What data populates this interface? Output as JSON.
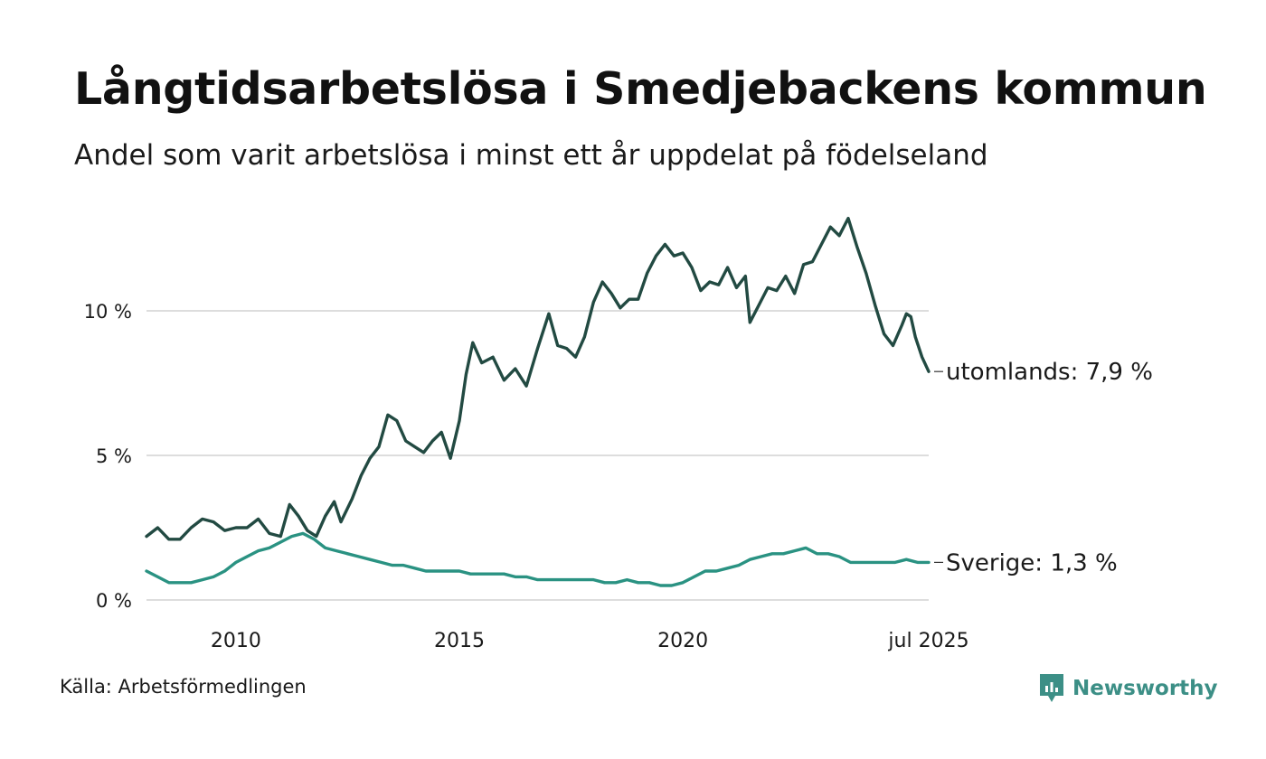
{
  "header": {
    "title": "Långtidsarbetslösa i Smedjebackens kommun",
    "subtitle": "Andel som varit arbetslösa i minst ett år uppdelat på födelseland"
  },
  "footer": {
    "source": "Källa: Arbetsförmedlingen",
    "brand": "Newsworthy"
  },
  "colors": {
    "utomlands": "#224a42",
    "sverige": "#2a9282",
    "grid": "#dddddd",
    "brand": "#3c8f86"
  },
  "chart_data": {
    "type": "line",
    "title": "Långtidsarbetslösa i Smedjebackens kommun",
    "subtitle": "Andel som varit arbetslösa i minst ett år uppdelat på födelseland",
    "xlabel": "",
    "ylabel": "",
    "xlim": [
      2008.0,
      2025.5
    ],
    "ylim": [
      0,
      14
    ],
    "grid": true,
    "legend": "end-of-line labels",
    "y_ticks": [
      {
        "value": 0,
        "label": "0 %"
      },
      {
        "value": 5,
        "label": "5 %"
      },
      {
        "value": 10,
        "label": "10 %"
      }
    ],
    "x_ticks": [
      {
        "value": 2010.0,
        "label": "2010"
      },
      {
        "value": 2015.0,
        "label": "2015"
      },
      {
        "value": 2020.0,
        "label": "2020"
      },
      {
        "value": 2025.5,
        "label": "jul 2025"
      }
    ],
    "series": [
      {
        "name": "utomlands",
        "end_label": "utomlands: 7,9 %",
        "points": [
          [
            2008.0,
            2.2
          ],
          [
            2008.25,
            2.5
          ],
          [
            2008.5,
            2.1
          ],
          [
            2008.75,
            2.1
          ],
          [
            2009.0,
            2.5
          ],
          [
            2009.25,
            2.8
          ],
          [
            2009.5,
            2.7
          ],
          [
            2009.75,
            2.4
          ],
          [
            2010.0,
            2.5
          ],
          [
            2010.25,
            2.5
          ],
          [
            2010.5,
            2.8
          ],
          [
            2010.75,
            2.3
          ],
          [
            2011.0,
            2.2
          ],
          [
            2011.2,
            3.3
          ],
          [
            2011.4,
            2.9
          ],
          [
            2011.6,
            2.4
          ],
          [
            2011.8,
            2.2
          ],
          [
            2012.0,
            2.9
          ],
          [
            2012.2,
            3.4
          ],
          [
            2012.35,
            2.7
          ],
          [
            2012.6,
            3.5
          ],
          [
            2012.8,
            4.3
          ],
          [
            2013.0,
            4.9
          ],
          [
            2013.2,
            5.3
          ],
          [
            2013.4,
            6.4
          ],
          [
            2013.6,
            6.2
          ],
          [
            2013.8,
            5.5
          ],
          [
            2014.0,
            5.3
          ],
          [
            2014.2,
            5.1
          ],
          [
            2014.4,
            5.5
          ],
          [
            2014.6,
            5.8
          ],
          [
            2014.8,
            4.9
          ],
          [
            2015.0,
            6.2
          ],
          [
            2015.15,
            7.8
          ],
          [
            2015.3,
            8.9
          ],
          [
            2015.5,
            8.2
          ],
          [
            2015.75,
            8.4
          ],
          [
            2016.0,
            7.6
          ],
          [
            2016.25,
            8.0
          ],
          [
            2016.5,
            7.4
          ],
          [
            2016.75,
            8.7
          ],
          [
            2017.0,
            9.9
          ],
          [
            2017.2,
            8.8
          ],
          [
            2017.4,
            8.7
          ],
          [
            2017.6,
            8.4
          ],
          [
            2017.8,
            9.1
          ],
          [
            2018.0,
            10.3
          ],
          [
            2018.2,
            11.0
          ],
          [
            2018.4,
            10.6
          ],
          [
            2018.6,
            10.1
          ],
          [
            2018.8,
            10.4
          ],
          [
            2019.0,
            10.4
          ],
          [
            2019.2,
            11.3
          ],
          [
            2019.4,
            11.9
          ],
          [
            2019.6,
            12.3
          ],
          [
            2019.8,
            11.9
          ],
          [
            2020.0,
            12.0
          ],
          [
            2020.2,
            11.5
          ],
          [
            2020.4,
            10.7
          ],
          [
            2020.6,
            11.0
          ],
          [
            2020.8,
            10.9
          ],
          [
            2021.0,
            11.5
          ],
          [
            2021.2,
            10.8
          ],
          [
            2021.4,
            11.2
          ],
          [
            2021.5,
            9.6
          ],
          [
            2021.7,
            10.2
          ],
          [
            2021.9,
            10.8
          ],
          [
            2022.1,
            10.7
          ],
          [
            2022.3,
            11.2
          ],
          [
            2022.5,
            10.6
          ],
          [
            2022.7,
            11.6
          ],
          [
            2022.9,
            11.7
          ],
          [
            2023.1,
            12.3
          ],
          [
            2023.3,
            12.9
          ],
          [
            2023.5,
            12.6
          ],
          [
            2023.7,
            13.2
          ],
          [
            2023.9,
            12.2
          ],
          [
            2024.1,
            11.3
          ],
          [
            2024.3,
            10.2
          ],
          [
            2024.5,
            9.2
          ],
          [
            2024.7,
            8.8
          ],
          [
            2024.9,
            9.5
          ],
          [
            2025.0,
            9.9
          ],
          [
            2025.1,
            9.8
          ],
          [
            2025.2,
            9.1
          ],
          [
            2025.35,
            8.4
          ],
          [
            2025.5,
            7.9
          ]
        ]
      },
      {
        "name": "Sverige",
        "end_label": "Sverige: 1,3 %",
        "points": [
          [
            2008.0,
            1.0
          ],
          [
            2008.25,
            0.8
          ],
          [
            2008.5,
            0.6
          ],
          [
            2008.75,
            0.6
          ],
          [
            2009.0,
            0.6
          ],
          [
            2009.25,
            0.7
          ],
          [
            2009.5,
            0.8
          ],
          [
            2009.75,
            1.0
          ],
          [
            2010.0,
            1.3
          ],
          [
            2010.25,
            1.5
          ],
          [
            2010.5,
            1.7
          ],
          [
            2010.75,
            1.8
          ],
          [
            2011.0,
            2.0
          ],
          [
            2011.25,
            2.2
          ],
          [
            2011.5,
            2.3
          ],
          [
            2011.75,
            2.1
          ],
          [
            2012.0,
            1.8
          ],
          [
            2012.25,
            1.7
          ],
          [
            2012.5,
            1.6
          ],
          [
            2012.75,
            1.5
          ],
          [
            2013.0,
            1.4
          ],
          [
            2013.25,
            1.3
          ],
          [
            2013.5,
            1.2
          ],
          [
            2013.75,
            1.2
          ],
          [
            2014.0,
            1.1
          ],
          [
            2014.25,
            1.0
          ],
          [
            2014.5,
            1.0
          ],
          [
            2014.75,
            1.0
          ],
          [
            2015.0,
            1.0
          ],
          [
            2015.25,
            0.9
          ],
          [
            2015.5,
            0.9
          ],
          [
            2015.75,
            0.9
          ],
          [
            2016.0,
            0.9
          ],
          [
            2016.25,
            0.8
          ],
          [
            2016.5,
            0.8
          ],
          [
            2016.75,
            0.7
          ],
          [
            2017.0,
            0.7
          ],
          [
            2017.25,
            0.7
          ],
          [
            2017.5,
            0.7
          ],
          [
            2017.75,
            0.7
          ],
          [
            2018.0,
            0.7
          ],
          [
            2018.25,
            0.6
          ],
          [
            2018.5,
            0.6
          ],
          [
            2018.75,
            0.7
          ],
          [
            2019.0,
            0.6
          ],
          [
            2019.25,
            0.6
          ],
          [
            2019.5,
            0.5
          ],
          [
            2019.75,
            0.5
          ],
          [
            2020.0,
            0.6
          ],
          [
            2020.25,
            0.8
          ],
          [
            2020.5,
            1.0
          ],
          [
            2020.75,
            1.0
          ],
          [
            2021.0,
            1.1
          ],
          [
            2021.25,
            1.2
          ],
          [
            2021.5,
            1.4
          ],
          [
            2021.75,
            1.5
          ],
          [
            2022.0,
            1.6
          ],
          [
            2022.25,
            1.6
          ],
          [
            2022.5,
            1.7
          ],
          [
            2022.75,
            1.8
          ],
          [
            2023.0,
            1.6
          ],
          [
            2023.25,
            1.6
          ],
          [
            2023.5,
            1.5
          ],
          [
            2023.75,
            1.3
          ],
          [
            2024.0,
            1.3
          ],
          [
            2024.25,
            1.3
          ],
          [
            2024.5,
            1.3
          ],
          [
            2024.75,
            1.3
          ],
          [
            2025.0,
            1.4
          ],
          [
            2025.25,
            1.3
          ],
          [
            2025.5,
            1.3
          ]
        ]
      }
    ]
  }
}
